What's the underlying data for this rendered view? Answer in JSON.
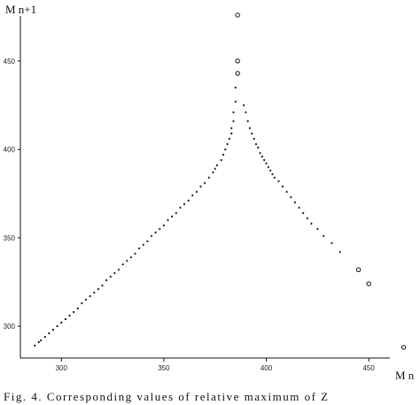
{
  "chart_data": {
    "type": "scatter",
    "title": "",
    "xlabel": "M n",
    "ylabel": "M n+1",
    "xlim": [
      280,
      475
    ],
    "ylim": [
      282,
      482
    ],
    "xticks": [
      "300",
      "350",
      "400",
      "450"
    ],
    "yticks": [
      "300",
      "350",
      "400",
      "450"
    ],
    "grid": false,
    "legend": "none",
    "caption": "Fig. 4. Corresponding values of relative maximum of Z",
    "series": [
      {
        "marker": "filled",
        "points": [
          [
            287,
            289
          ],
          [
            289,
            291
          ],
          [
            290,
            292
          ],
          [
            292,
            294
          ],
          [
            294,
            296
          ],
          [
            296,
            298
          ],
          [
            298,
            300
          ],
          [
            300,
            302
          ],
          [
            302,
            304
          ],
          [
            304,
            306
          ],
          [
            306,
            308
          ],
          [
            308,
            310
          ],
          [
            310,
            313
          ],
          [
            312,
            315
          ],
          [
            314,
            317
          ],
          [
            316,
            319
          ],
          [
            318,
            321
          ],
          [
            320,
            323
          ],
          [
            322,
            326
          ],
          [
            324,
            328
          ],
          [
            326,
            330
          ],
          [
            328,
            332
          ],
          [
            330,
            335
          ],
          [
            332,
            337
          ],
          [
            334,
            339
          ],
          [
            336,
            341
          ],
          [
            338,
            344
          ],
          [
            340,
            346
          ],
          [
            342,
            348
          ],
          [
            344,
            351
          ],
          [
            346,
            353
          ],
          [
            348,
            355
          ],
          [
            350,
            357
          ],
          [
            352,
            360
          ],
          [
            354,
            362
          ],
          [
            356,
            364
          ],
          [
            358,
            367
          ],
          [
            360,
            369
          ],
          [
            362,
            371
          ],
          [
            364,
            374
          ],
          [
            366,
            376
          ],
          [
            368,
            379
          ],
          [
            370,
            381
          ],
          [
            372,
            384
          ],
          [
            374,
            387
          ],
          [
            375,
            389
          ],
          [
            376,
            391
          ],
          [
            378,
            394
          ],
          [
            379,
            397
          ],
          [
            380,
            400
          ],
          [
            381,
            403
          ],
          [
            382,
            406
          ],
          [
            383,
            409
          ],
          [
            383,
            412
          ],
          [
            384,
            416
          ],
          [
            384,
            421
          ],
          [
            385,
            427
          ],
          [
            385,
            435
          ],
          [
            389,
            425
          ],
          [
            390,
            421
          ],
          [
            391,
            416
          ],
          [
            392,
            412
          ],
          [
            393,
            409
          ],
          [
            394,
            406
          ],
          [
            395,
            403
          ],
          [
            396,
            401
          ],
          [
            397,
            398
          ],
          [
            398,
            396
          ],
          [
            399,
            394
          ],
          [
            400,
            392
          ],
          [
            401,
            390
          ],
          [
            402,
            388
          ],
          [
            403,
            386
          ],
          [
            404,
            384
          ],
          [
            406,
            382
          ],
          [
            408,
            379
          ],
          [
            410,
            376
          ],
          [
            412,
            373
          ],
          [
            414,
            370
          ],
          [
            416,
            367
          ],
          [
            418,
            364
          ],
          [
            420,
            361
          ],
          [
            422,
            358
          ],
          [
            425,
            355
          ],
          [
            428,
            351
          ],
          [
            432,
            347
          ],
          [
            436,
            342
          ]
        ]
      },
      {
        "marker": "open",
        "points": [
          [
            386,
            476
          ],
          [
            386,
            450
          ],
          [
            386,
            443
          ],
          [
            445,
            332
          ],
          [
            450,
            324
          ],
          [
            467,
            288
          ]
        ]
      }
    ]
  }
}
